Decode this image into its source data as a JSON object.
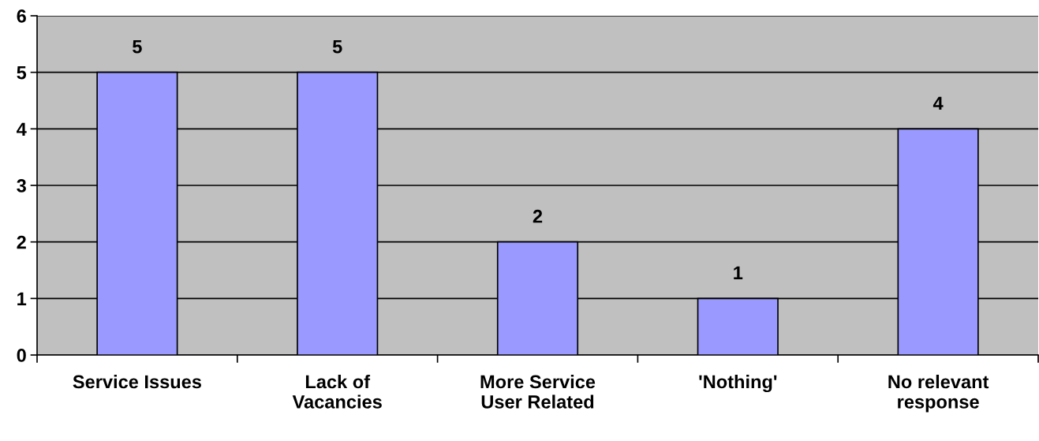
{
  "chart_data": {
    "type": "bar",
    "categories": [
      "Service Issues",
      "Lack of\nVacancies",
      "More Service\nUser Related",
      "'Nothing'",
      "No relevant\nresponse"
    ],
    "values": [
      5,
      5,
      2,
      1,
      4
    ],
    "color": "#9999ff",
    "ylim": [
      0,
      6
    ],
    "yticks": [
      0,
      1,
      2,
      3,
      4,
      5,
      6
    ],
    "grid": "y",
    "data_labels": true,
    "legend": false
  }
}
